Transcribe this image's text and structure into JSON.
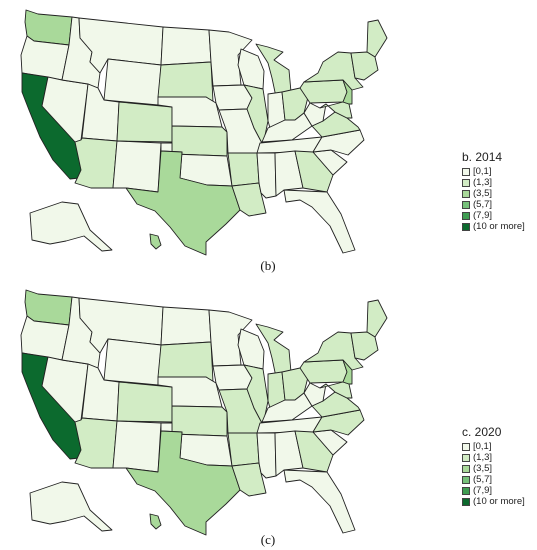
{
  "legend_classes": [
    {
      "label": "[0,1]",
      "color": "#f1f8ea"
    },
    {
      "label": "(1,3]",
      "color": "#d2ecc5"
    },
    {
      "label": "(3,5]",
      "color": "#a9d99a"
    },
    {
      "label": "(5,7]",
      "color": "#76c17a"
    },
    {
      "label": "(7,9]",
      "color": "#3f9d52"
    },
    {
      "label": "(10 or more]",
      "color": "#0c6a2e"
    }
  ],
  "panels": [
    {
      "caption": "(b)",
      "legend_title": "b. 2014",
      "state_class": {
        "WA": 2,
        "OR": 0,
        "CA": 5,
        "NV": 0,
        "ID": 0,
        "MT": 0,
        "WY": 0,
        "UT": 0,
        "AZ": 1,
        "CO": 1,
        "NM": 0,
        "ND": 0,
        "SD": 1,
        "NE": 0,
        "KS": 1,
        "OK": 0,
        "TX": 2,
        "MN": 0,
        "IA": 0,
        "MO": 0,
        "AR": 1,
        "LA": 1,
        "WI": 0,
        "IL": 1,
        "MI": 1,
        "IN": 0,
        "OH": 1,
        "KY": 0,
        "TN": 0,
        "MS": 0,
        "AL": 0,
        "GA": 1,
        "FL": 0,
        "SC": 0,
        "NC": 0,
        "VA": 1,
        "WV": 0,
        "PA": 1,
        "NY": 1,
        "ME": 1,
        "NE6": 1,
        "MDDE": 1,
        "NJ": 2,
        "AK": 0,
        "HI": 2
      }
    },
    {
      "caption": "(c)",
      "legend_title": "c. 2020",
      "state_class": {
        "WA": 2,
        "OR": 0,
        "CA": 5,
        "NV": 0,
        "ID": 0,
        "MT": 0,
        "WY": 0,
        "UT": 0,
        "AZ": 1,
        "CO": 1,
        "NM": 0,
        "ND": 0,
        "SD": 1,
        "NE": 0,
        "KS": 1,
        "OK": 0,
        "TX": 2,
        "MN": 0,
        "IA": 0,
        "MO": 1,
        "AR": 1,
        "LA": 1,
        "WI": 0,
        "IL": 1,
        "MI": 1,
        "IN": 1,
        "OH": 1,
        "KY": 0,
        "TN": 0,
        "MS": 0,
        "AL": 0,
        "GA": 1,
        "FL": 0,
        "SC": 0,
        "NC": 1,
        "VA": 1,
        "WV": 0,
        "PA": 1,
        "NY": 1,
        "ME": 1,
        "NE6": 1,
        "MDDE": 1,
        "NJ": 2,
        "AK": 0,
        "HI": 2
      }
    }
  ]
}
